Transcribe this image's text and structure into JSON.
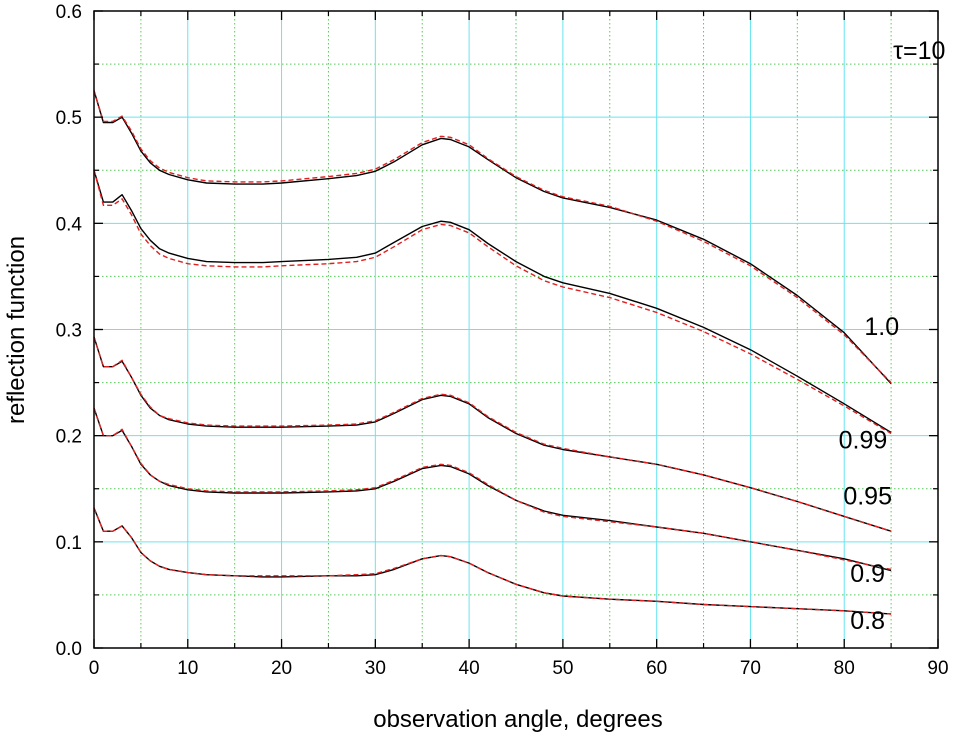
{
  "chart_data": {
    "type": "line",
    "title": "",
    "xlabel": "observation angle, degrees",
    "ylabel": "reflection function",
    "xlim": [
      0,
      90
    ],
    "ylim": [
      0,
      0.6
    ],
    "xticks": [
      "0",
      "10",
      "20",
      "30",
      "40",
      "50",
      "60",
      "70",
      "80",
      "90"
    ],
    "yticks": [
      "0.0",
      "0.1",
      "0.2",
      "0.3",
      "0.4",
      "0.5",
      "0.6"
    ],
    "grid_major_color": "#66e5f0",
    "grid_minor_color": "#55cc55",
    "annotations": [
      {
        "text": "τ=10",
        "x": 88,
        "y": 0.555
      },
      {
        "text": "1.0",
        "x": 84,
        "y": 0.295
      },
      {
        "text": "0.99",
        "x": 82,
        "y": 0.188
      },
      {
        "text": "0.95",
        "x": 82.5,
        "y": 0.135
      },
      {
        "text": "0.9",
        "x": 82.5,
        "y": 0.062
      },
      {
        "text": "0.8",
        "x": 82.5,
        "y": 0.018
      }
    ],
    "x": [
      0,
      1,
      2,
      3,
      4,
      5,
      6,
      7,
      8,
      10,
      12,
      15,
      18,
      20,
      25,
      28,
      30,
      32,
      35,
      37,
      38,
      40,
      42,
      45,
      48,
      50,
      55,
      60,
      65,
      70,
      75,
      80,
      85
    ],
    "series": [
      {
        "style": "solid",
        "color": "#000000",
        "values": [
          0.525,
          0.495,
          0.495,
          0.5,
          0.485,
          0.468,
          0.457,
          0.45,
          0.446,
          0.441,
          0.438,
          0.437,
          0.437,
          0.438,
          0.442,
          0.445,
          0.449,
          0.458,
          0.474,
          0.48,
          0.479,
          0.472,
          0.46,
          0.443,
          0.43,
          0.424,
          0.415,
          0.403,
          0.385,
          0.362,
          0.332,
          0.297,
          0.249
        ]
      },
      {
        "style": "dashed",
        "color": "#e02020",
        "values": [
          0.525,
          0.496,
          0.496,
          0.501,
          0.487,
          0.47,
          0.459,
          0.452,
          0.448,
          0.443,
          0.44,
          0.439,
          0.439,
          0.44,
          0.444,
          0.447,
          0.451,
          0.46,
          0.476,
          0.482,
          0.481,
          0.474,
          0.461,
          0.444,
          0.431,
          0.425,
          0.416,
          0.402,
          0.383,
          0.36,
          0.33,
          0.295,
          0.25
        ]
      },
      {
        "style": "solid",
        "color": "#000000",
        "values": [
          0.45,
          0.42,
          0.42,
          0.427,
          0.412,
          0.395,
          0.384,
          0.376,
          0.372,
          0.367,
          0.364,
          0.363,
          0.363,
          0.364,
          0.366,
          0.368,
          0.372,
          0.382,
          0.397,
          0.402,
          0.401,
          0.394,
          0.381,
          0.364,
          0.35,
          0.344,
          0.334,
          0.32,
          0.302,
          0.281,
          0.256,
          0.23,
          0.203
        ]
      },
      {
        "style": "dashed",
        "color": "#e02020",
        "values": [
          0.45,
          0.417,
          0.417,
          0.423,
          0.408,
          0.39,
          0.379,
          0.371,
          0.367,
          0.362,
          0.36,
          0.359,
          0.359,
          0.36,
          0.362,
          0.364,
          0.368,
          0.378,
          0.394,
          0.399,
          0.398,
          0.391,
          0.378,
          0.36,
          0.346,
          0.34,
          0.33,
          0.316,
          0.298,
          0.277,
          0.253,
          0.228,
          0.202
        ]
      },
      {
        "style": "solid",
        "color": "#000000",
        "values": [
          0.293,
          0.265,
          0.265,
          0.27,
          0.255,
          0.238,
          0.226,
          0.219,
          0.215,
          0.211,
          0.209,
          0.208,
          0.208,
          0.208,
          0.209,
          0.21,
          0.213,
          0.221,
          0.234,
          0.238,
          0.237,
          0.23,
          0.217,
          0.202,
          0.191,
          0.187,
          0.18,
          0.173,
          0.163,
          0.151,
          0.138,
          0.124,
          0.11
        ]
      },
      {
        "style": "dashed",
        "color": "#e02020",
        "values": [
          0.293,
          0.265,
          0.265,
          0.271,
          0.255,
          0.239,
          0.227,
          0.219,
          0.216,
          0.212,
          0.21,
          0.209,
          0.209,
          0.209,
          0.21,
          0.211,
          0.214,
          0.222,
          0.235,
          0.239,
          0.238,
          0.231,
          0.218,
          0.203,
          0.192,
          0.188,
          0.18,
          0.173,
          0.163,
          0.151,
          0.138,
          0.124,
          0.11
        ]
      },
      {
        "style": "solid",
        "color": "#000000",
        "values": [
          0.226,
          0.2,
          0.2,
          0.205,
          0.19,
          0.173,
          0.163,
          0.157,
          0.153,
          0.149,
          0.147,
          0.146,
          0.146,
          0.146,
          0.147,
          0.148,
          0.15,
          0.157,
          0.169,
          0.172,
          0.171,
          0.164,
          0.153,
          0.139,
          0.129,
          0.125,
          0.12,
          0.114,
          0.108,
          0.1,
          0.092,
          0.084,
          0.073
        ]
      },
      {
        "style": "dashed",
        "color": "#e02020",
        "values": [
          0.226,
          0.2,
          0.2,
          0.206,
          0.19,
          0.174,
          0.163,
          0.157,
          0.154,
          0.15,
          0.148,
          0.147,
          0.147,
          0.147,
          0.148,
          0.149,
          0.151,
          0.158,
          0.17,
          0.173,
          0.172,
          0.165,
          0.154,
          0.139,
          0.128,
          0.124,
          0.119,
          0.114,
          0.108,
          0.1,
          0.092,
          0.083,
          0.074
        ]
      },
      {
        "style": "solid",
        "color": "#000000",
        "values": [
          0.132,
          0.11,
          0.11,
          0.115,
          0.104,
          0.09,
          0.082,
          0.077,
          0.074,
          0.071,
          0.069,
          0.068,
          0.067,
          0.067,
          0.068,
          0.068,
          0.069,
          0.074,
          0.084,
          0.087,
          0.086,
          0.08,
          0.071,
          0.06,
          0.052,
          0.049,
          0.046,
          0.044,
          0.041,
          0.039,
          0.037,
          0.035,
          0.032
        ]
      },
      {
        "style": "dashed",
        "color": "#e02020",
        "values": [
          0.132,
          0.11,
          0.11,
          0.115,
          0.104,
          0.09,
          0.082,
          0.077,
          0.074,
          0.071,
          0.069,
          0.068,
          0.068,
          0.068,
          0.068,
          0.069,
          0.07,
          0.075,
          0.084,
          0.087,
          0.086,
          0.08,
          0.071,
          0.06,
          0.052,
          0.049,
          0.046,
          0.044,
          0.041,
          0.039,
          0.037,
          0.035,
          0.032
        ]
      }
    ]
  }
}
